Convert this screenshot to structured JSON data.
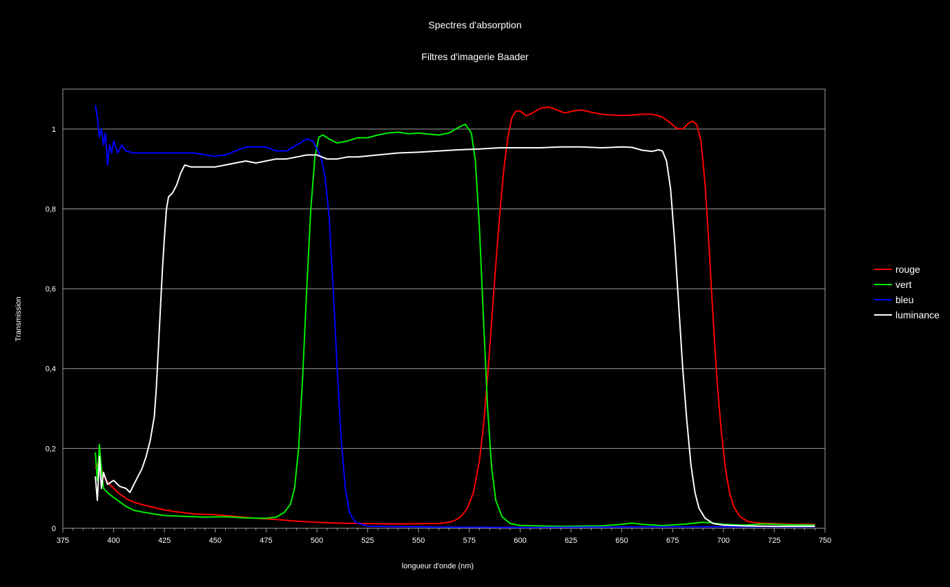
{
  "chart_data": {
    "type": "line",
    "title": "Spectres d'absorption",
    "subtitle": "Filtres d'imagerie Baader",
    "xlabel": "longueur d'onde (nm)",
    "ylabel": "Transmission",
    "xlim": [
      375,
      750
    ],
    "ylim": [
      0,
      1.1
    ],
    "x_ticks": [
      375,
      400,
      425,
      450,
      475,
      500,
      525,
      550,
      575,
      600,
      625,
      650,
      675,
      700,
      725,
      750
    ],
    "y_ticks": [
      0,
      0.2,
      0.4,
      0.6,
      0.8,
      1
    ],
    "y_tick_labels": [
      "0",
      "0,2",
      "0,4",
      "0,6",
      "0,8",
      "1"
    ],
    "grid": "horizontal",
    "legend_position": "right",
    "background": "#000000",
    "series": [
      {
        "name": "rouge",
        "color": "#ff0000",
        "points": [
          [
            391,
            0.15
          ],
          [
            393,
            0.17
          ],
          [
            395,
            0.13
          ],
          [
            398,
            0.11
          ],
          [
            402,
            0.09
          ],
          [
            406,
            0.075
          ],
          [
            410,
            0.065
          ],
          [
            415,
            0.058
          ],
          [
            420,
            0.052
          ],
          [
            425,
            0.046
          ],
          [
            430,
            0.042
          ],
          [
            440,
            0.036
          ],
          [
            450,
            0.034
          ],
          [
            460,
            0.03
          ],
          [
            470,
            0.025
          ],
          [
            480,
            0.022
          ],
          [
            490,
            0.018
          ],
          [
            500,
            0.015
          ],
          [
            510,
            0.013
          ],
          [
            520,
            0.012
          ],
          [
            540,
            0.011
          ],
          [
            560,
            0.012
          ],
          [
            565,
            0.015
          ],
          [
            568,
            0.02
          ],
          [
            571,
            0.03
          ],
          [
            574,
            0.05
          ],
          [
            577,
            0.09
          ],
          [
            580,
            0.17
          ],
          [
            582,
            0.26
          ],
          [
            584,
            0.38
          ],
          [
            586,
            0.52
          ],
          [
            588,
            0.66
          ],
          [
            590,
            0.79
          ],
          [
            592,
            0.9
          ],
          [
            594,
            0.98
          ],
          [
            596,
            1.03
          ],
          [
            598,
            1.045
          ],
          [
            600,
            1.045
          ],
          [
            603,
            1.033
          ],
          [
            606,
            1.04
          ],
          [
            610,
            1.052
          ],
          [
            614,
            1.055
          ],
          [
            618,
            1.048
          ],
          [
            622,
            1.04
          ],
          [
            626,
            1.045
          ],
          [
            630,
            1.048
          ],
          [
            635,
            1.042
          ],
          [
            640,
            1.037
          ],
          [
            645,
            1.035
          ],
          [
            650,
            1.034
          ],
          [
            655,
            1.035
          ],
          [
            660,
            1.037
          ],
          [
            665,
            1.037
          ],
          [
            670,
            1.03
          ],
          [
            674,
            1.015
          ],
          [
            677,
            1.002
          ],
          [
            680,
            1.0
          ],
          [
            683,
            1.015
          ],
          [
            685,
            1.02
          ],
          [
            687,
            1.01
          ],
          [
            689,
            0.97
          ],
          [
            691,
            0.86
          ],
          [
            693,
            0.7
          ],
          [
            695,
            0.52
          ],
          [
            697,
            0.36
          ],
          [
            699,
            0.24
          ],
          [
            701,
            0.15
          ],
          [
            703,
            0.09
          ],
          [
            705,
            0.055
          ],
          [
            708,
            0.03
          ],
          [
            712,
            0.017
          ],
          [
            718,
            0.013
          ],
          [
            725,
            0.012
          ],
          [
            735,
            0.01
          ],
          [
            745,
            0.01
          ]
        ]
      },
      {
        "name": "vert",
        "color": "#00ee00",
        "points": [
          [
            391,
            0.19
          ],
          [
            392,
            0.12
          ],
          [
            393,
            0.21
          ],
          [
            394,
            0.15
          ],
          [
            395,
            0.1
          ],
          [
            398,
            0.085
          ],
          [
            402,
            0.07
          ],
          [
            406,
            0.055
          ],
          [
            410,
            0.045
          ],
          [
            415,
            0.04
          ],
          [
            420,
            0.036
          ],
          [
            425,
            0.032
          ],
          [
            435,
            0.03
          ],
          [
            445,
            0.028
          ],
          [
            455,
            0.029
          ],
          [
            465,
            0.026
          ],
          [
            475,
            0.025
          ],
          [
            480,
            0.028
          ],
          [
            484,
            0.04
          ],
          [
            487,
            0.06
          ],
          [
            489,
            0.1
          ],
          [
            491,
            0.2
          ],
          [
            493,
            0.38
          ],
          [
            495,
            0.6
          ],
          [
            497,
            0.8
          ],
          [
            499,
            0.93
          ],
          [
            501,
            0.98
          ],
          [
            503,
            0.985
          ],
          [
            506,
            0.975
          ],
          [
            510,
            0.965
          ],
          [
            515,
            0.97
          ],
          [
            520,
            0.978
          ],
          [
            525,
            0.978
          ],
          [
            530,
            0.985
          ],
          [
            535,
            0.99
          ],
          [
            540,
            0.992
          ],
          [
            545,
            0.988
          ],
          [
            550,
            0.99
          ],
          [
            555,
            0.987
          ],
          [
            560,
            0.985
          ],
          [
            565,
            0.99
          ],
          [
            570,
            1.005
          ],
          [
            573,
            1.012
          ],
          [
            576,
            0.99
          ],
          [
            578,
            0.92
          ],
          [
            580,
            0.75
          ],
          [
            582,
            0.52
          ],
          [
            584,
            0.3
          ],
          [
            586,
            0.15
          ],
          [
            588,
            0.07
          ],
          [
            591,
            0.03
          ],
          [
            595,
            0.012
          ],
          [
            600,
            0.007
          ],
          [
            620,
            0.005
          ],
          [
            640,
            0.006
          ],
          [
            650,
            0.01
          ],
          [
            655,
            0.013
          ],
          [
            660,
            0.01
          ],
          [
            670,
            0.007
          ],
          [
            680,
            0.01
          ],
          [
            690,
            0.015
          ],
          [
            695,
            0.013
          ],
          [
            700,
            0.01
          ],
          [
            710,
            0.008
          ],
          [
            720,
            0.011
          ],
          [
            730,
            0.009
          ],
          [
            745,
            0.008
          ]
        ]
      },
      {
        "name": "bleu",
        "color": "#0000ff",
        "points": [
          [
            391,
            1.06
          ],
          [
            392,
            1.03
          ],
          [
            393,
            0.98
          ],
          [
            394,
            1.0
          ],
          [
            395,
            0.96
          ],
          [
            396,
            0.99
          ],
          [
            397,
            0.91
          ],
          [
            398,
            0.96
          ],
          [
            399,
            0.94
          ],
          [
            400,
            0.97
          ],
          [
            402,
            0.94
          ],
          [
            404,
            0.96
          ],
          [
            406,
            0.945
          ],
          [
            410,
            0.94
          ],
          [
            415,
            0.94
          ],
          [
            420,
            0.94
          ],
          [
            425,
            0.94
          ],
          [
            430,
            0.94
          ],
          [
            435,
            0.94
          ],
          [
            440,
            0.94
          ],
          [
            445,
            0.935
          ],
          [
            450,
            0.932
          ],
          [
            455,
            0.935
          ],
          [
            460,
            0.945
          ],
          [
            465,
            0.955
          ],
          [
            470,
            0.955
          ],
          [
            475,
            0.955
          ],
          [
            480,
            0.945
          ],
          [
            485,
            0.945
          ],
          [
            490,
            0.96
          ],
          [
            495,
            0.975
          ],
          [
            498,
            0.97
          ],
          [
            500,
            0.95
          ],
          [
            502,
            0.93
          ],
          [
            504,
            0.88
          ],
          [
            506,
            0.78
          ],
          [
            508,
            0.6
          ],
          [
            510,
            0.4
          ],
          [
            512,
            0.22
          ],
          [
            514,
            0.1
          ],
          [
            516,
            0.04
          ],
          [
            519,
            0.015
          ],
          [
            525,
            0.005
          ],
          [
            560,
            0.003
          ],
          [
            600,
            0.002
          ],
          [
            640,
            0.003
          ],
          [
            660,
            0.004
          ],
          [
            700,
            0.004
          ],
          [
            745,
            0.004
          ]
        ]
      },
      {
        "name": "luminance",
        "color": "#ffffff",
        "points": [
          [
            391,
            0.13
          ],
          [
            392,
            0.07
          ],
          [
            393,
            0.18
          ],
          [
            394,
            0.1
          ],
          [
            395,
            0.14
          ],
          [
            397,
            0.11
          ],
          [
            400,
            0.12
          ],
          [
            403,
            0.105
          ],
          [
            406,
            0.1
          ],
          [
            408,
            0.09
          ],
          [
            410,
            0.11
          ],
          [
            412,
            0.13
          ],
          [
            414,
            0.15
          ],
          [
            416,
            0.18
          ],
          [
            418,
            0.22
          ],
          [
            420,
            0.28
          ],
          [
            421,
            0.35
          ],
          [
            422,
            0.45
          ],
          [
            423,
            0.55
          ],
          [
            424,
            0.65
          ],
          [
            425,
            0.73
          ],
          [
            426,
            0.8
          ],
          [
            427,
            0.83
          ],
          [
            429,
            0.84
          ],
          [
            431,
            0.86
          ],
          [
            433,
            0.89
          ],
          [
            435,
            0.91
          ],
          [
            438,
            0.905
          ],
          [
            442,
            0.905
          ],
          [
            446,
            0.905
          ],
          [
            450,
            0.905
          ],
          [
            455,
            0.91
          ],
          [
            460,
            0.915
          ],
          [
            465,
            0.92
          ],
          [
            470,
            0.915
          ],
          [
            475,
            0.92
          ],
          [
            480,
            0.925
          ],
          [
            485,
            0.925
          ],
          [
            490,
            0.93
          ],
          [
            495,
            0.935
          ],
          [
            500,
            0.935
          ],
          [
            505,
            0.925
          ],
          [
            510,
            0.925
          ],
          [
            515,
            0.93
          ],
          [
            520,
            0.93
          ],
          [
            530,
            0.935
          ],
          [
            540,
            0.94
          ],
          [
            550,
            0.942
          ],
          [
            560,
            0.945
          ],
          [
            570,
            0.948
          ],
          [
            580,
            0.95
          ],
          [
            590,
            0.953
          ],
          [
            600,
            0.953
          ],
          [
            610,
            0.953
          ],
          [
            620,
            0.955
          ],
          [
            630,
            0.955
          ],
          [
            640,
            0.953
          ],
          [
            650,
            0.955
          ],
          [
            655,
            0.954
          ],
          [
            660,
            0.947
          ],
          [
            665,
            0.944
          ],
          [
            668,
            0.948
          ],
          [
            670,
            0.945
          ],
          [
            672,
            0.92
          ],
          [
            674,
            0.85
          ],
          [
            676,
            0.72
          ],
          [
            678,
            0.56
          ],
          [
            680,
            0.4
          ],
          [
            682,
            0.27
          ],
          [
            684,
            0.16
          ],
          [
            686,
            0.09
          ],
          [
            688,
            0.05
          ],
          [
            691,
            0.025
          ],
          [
            695,
            0.012
          ],
          [
            700,
            0.008
          ],
          [
            710,
            0.006
          ],
          [
            725,
            0.005
          ],
          [
            745,
            0.005
          ]
        ]
      }
    ]
  }
}
